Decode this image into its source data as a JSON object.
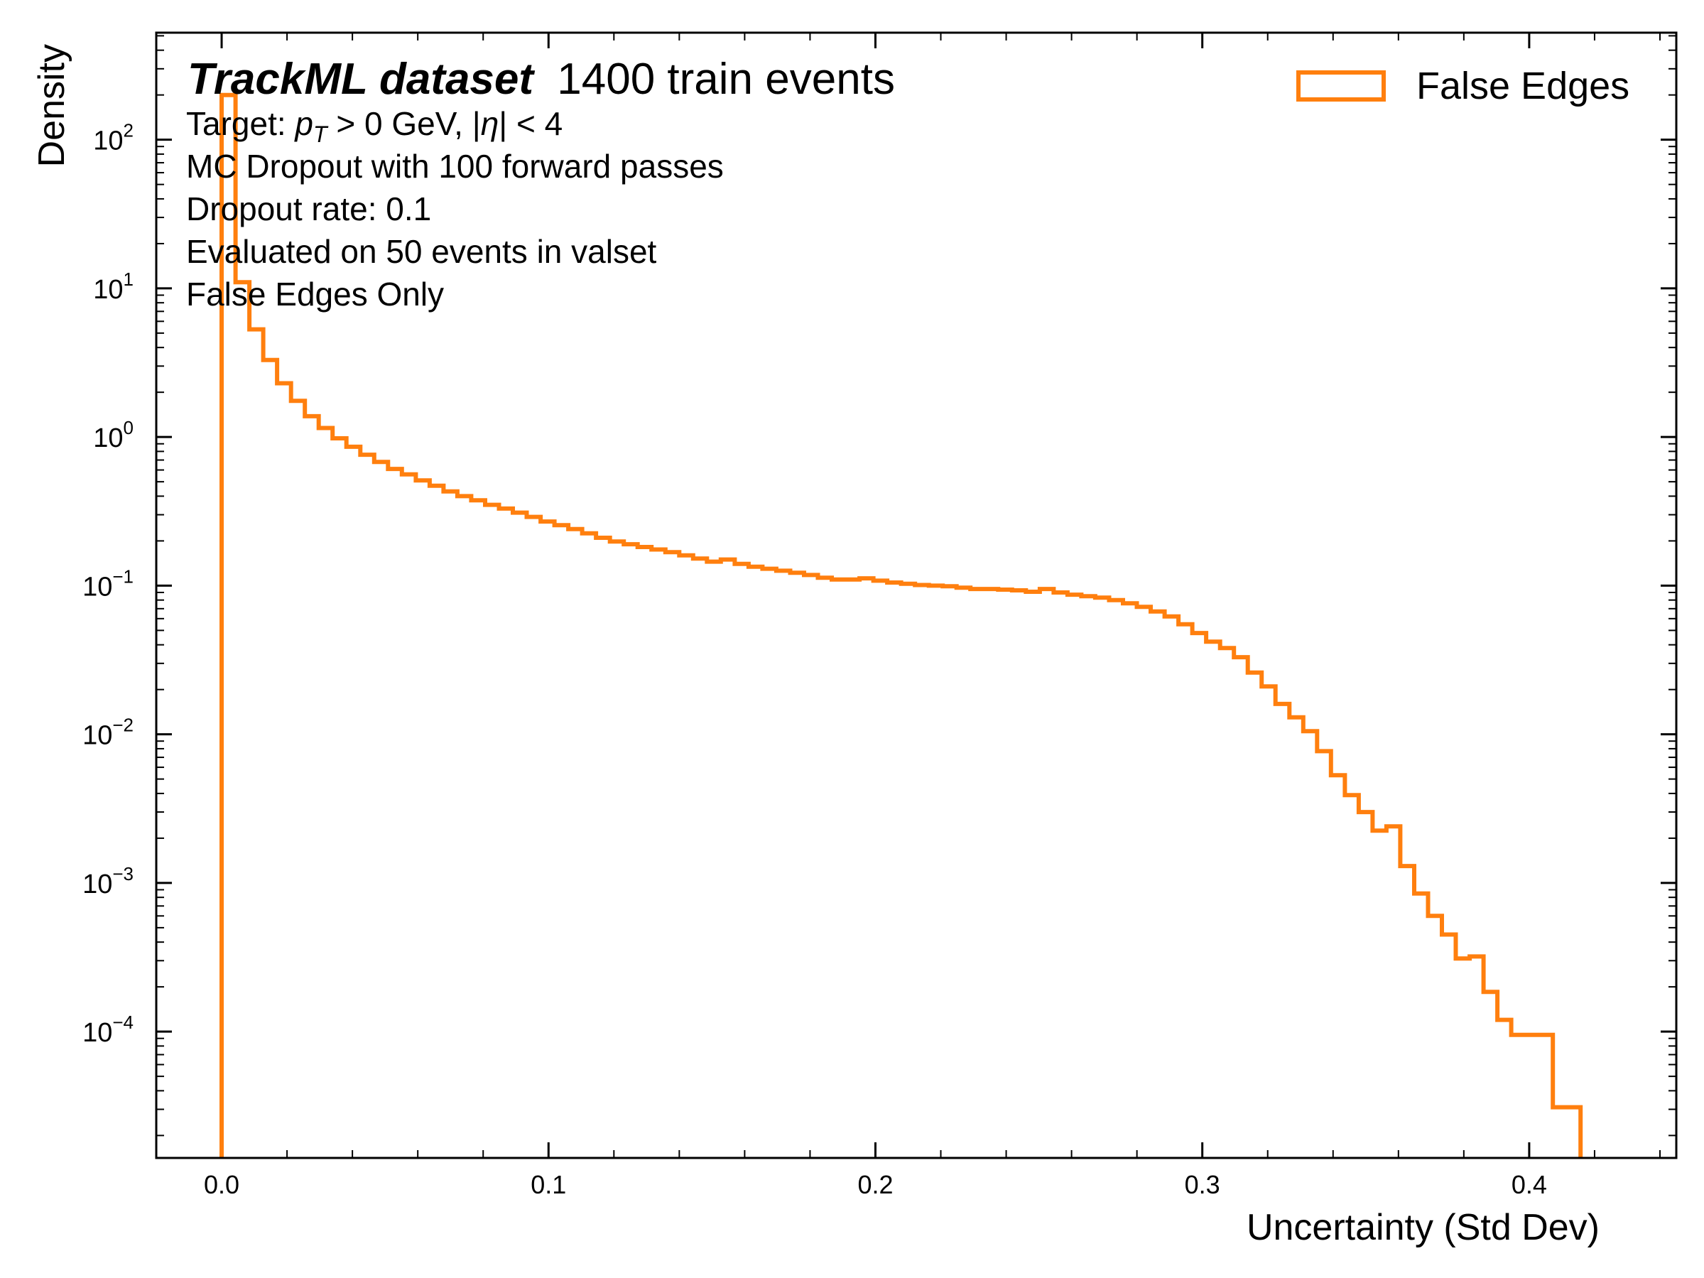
{
  "chart_data": {
    "type": "histogram-step",
    "scale_y": "log",
    "xlabel": "Uncertainty (Std Dev)",
    "ylabel": "Density",
    "xlim": [
      -0.02,
      0.445
    ],
    "ylim_log10": [
      -4.85,
      2.72
    ],
    "x_ticks": [
      0.0,
      0.1,
      0.2,
      0.3,
      0.4
    ],
    "x_tick_labels": [
      "0.0",
      "0.1",
      "0.2",
      "0.3",
      "0.4"
    ],
    "y_ticks": [
      {
        "mant": "10",
        "exp": "2"
      },
      {
        "mant": "10",
        "exp": "1"
      },
      {
        "mant": "10",
        "exp": "0"
      },
      {
        "mant": "10",
        "exp": "−1"
      },
      {
        "mant": "10",
        "exp": "−2"
      },
      {
        "mant": "10",
        "exp": "−3"
      },
      {
        "mant": "10",
        "exp": "−4"
      }
    ],
    "annotation": {
      "title_bold": "TrackML dataset",
      "title_rest": "1400 train events",
      "target_prefix": "Target: ",
      "target_pt_var": "p",
      "target_pt_sub": "T",
      "target_cut1": " > 0 GeV, |",
      "target_eta_var": "η",
      "target_cut2": "| < 4",
      "lines": [
        "MC Dropout with 100 forward passes",
        "Dropout rate: 0.1",
        "Evaluated on 50 events in valset",
        "False Edges Only"
      ]
    },
    "series": [
      {
        "name": "False Edges",
        "color": "#ff7f0e",
        "bin_width": 0.004242,
        "bin_start": 0.0,
        "values": [
          200,
          11,
          5.3,
          3.3,
          2.3,
          1.75,
          1.38,
          1.15,
          0.98,
          0.86,
          0.76,
          0.68,
          0.61,
          0.56,
          0.51,
          0.47,
          0.43,
          0.4,
          0.375,
          0.35,
          0.33,
          0.31,
          0.29,
          0.27,
          0.255,
          0.24,
          0.225,
          0.21,
          0.198,
          0.19,
          0.182,
          0.175,
          0.168,
          0.16,
          0.152,
          0.145,
          0.15,
          0.14,
          0.134,
          0.13,
          0.126,
          0.122,
          0.118,
          0.113,
          0.11,
          0.11,
          0.112,
          0.108,
          0.105,
          0.103,
          0.101,
          0.1,
          0.099,
          0.097,
          0.095,
          0.095,
          0.094,
          0.093,
          0.091,
          0.095,
          0.09,
          0.087,
          0.085,
          0.083,
          0.08,
          0.076,
          0.072,
          0.067,
          0.062,
          0.055,
          0.048,
          0.042,
          0.038,
          0.033,
          0.026,
          0.021,
          0.016,
          0.013,
          0.0105,
          0.0077,
          0.0053,
          0.0039,
          0.003,
          0.00225,
          0.0024,
          0.0013,
          0.00085,
          0.0006,
          0.00045,
          0.00031,
          0.00032,
          0.000185,
          0.00012,
          9.5e-05,
          9.5e-05,
          9.5e-05,
          3.1e-05,
          3.1e-05
        ]
      }
    ]
  }
}
